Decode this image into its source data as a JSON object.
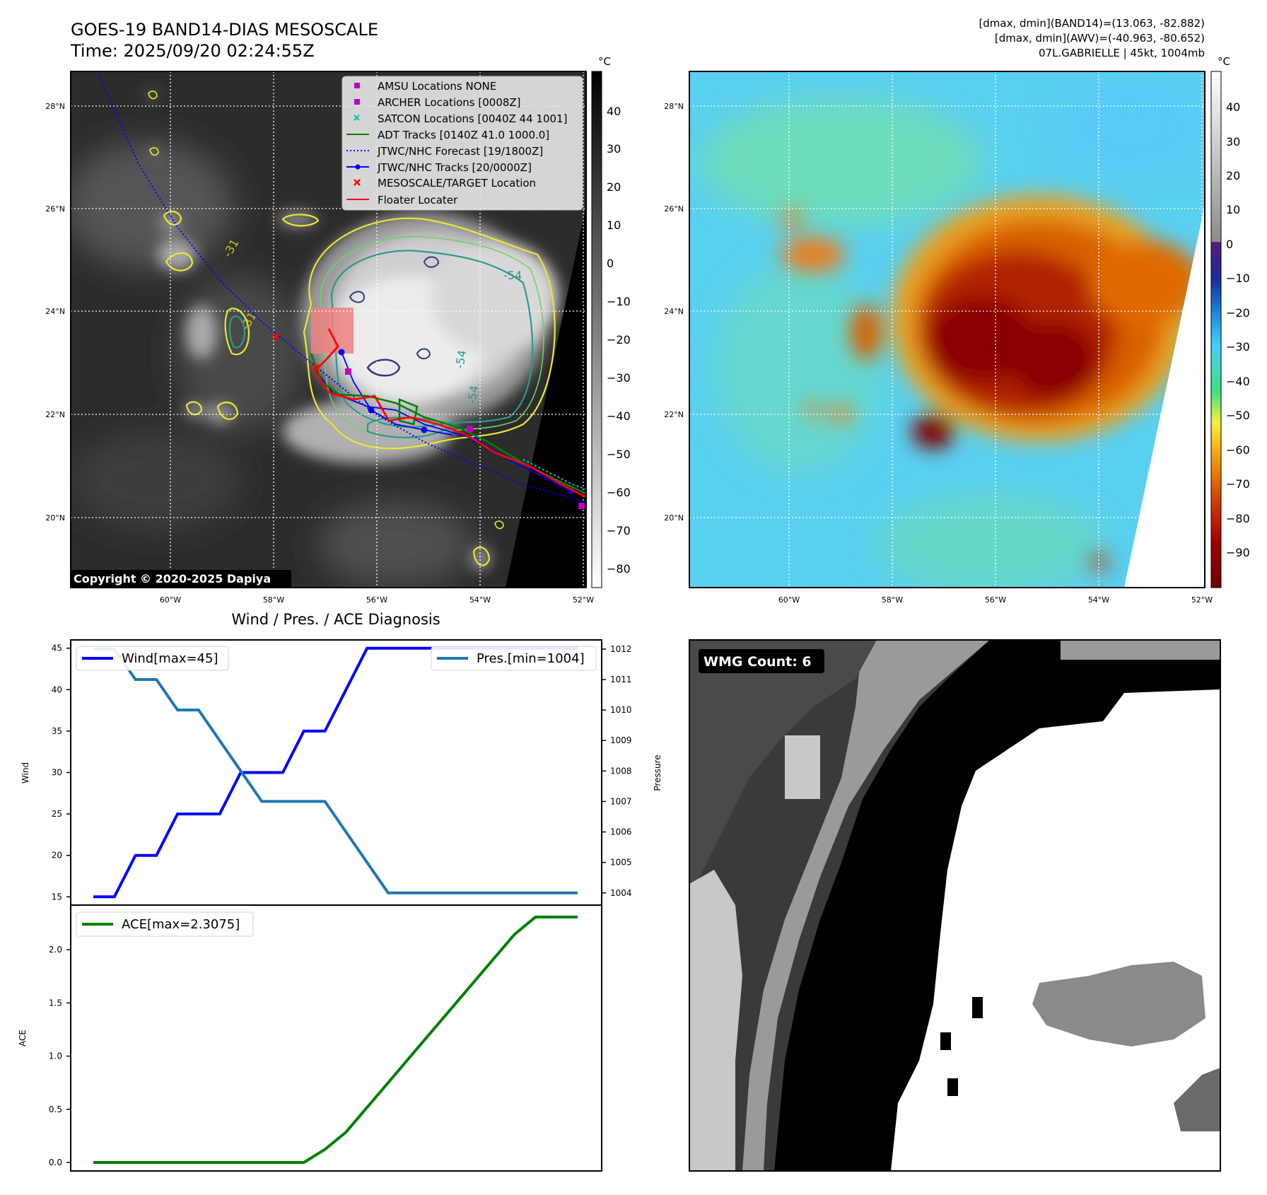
{
  "header": {
    "title_line1": "GOES-19 BAND14-DIAS MESOSCALE",
    "title_line2": "Time: 2025/09/20 02:24:55Z",
    "stats_line1": "[dmax, dmin](BAND14)=(13.063, -82.882)",
    "stats_line2": "[dmax, dmin](AWV)=(-40.963, -80.652)",
    "stats_line3": "07L.GABRIELLE | 45kt, 1004mb"
  },
  "map": {
    "lat_labels": [
      "20°N",
      "22°N",
      "24°N",
      "26°N",
      "28°N"
    ],
    "lon_labels": [
      "60°W",
      "58°W",
      "56°W",
      "54°W",
      "52°W"
    ],
    "copyright": "Copyright © 2020-2025 Dapiya",
    "contour_labels": [
      "-54",
      "-54",
      "-54",
      "-31",
      "-31"
    ],
    "colorbar_unit": "°C",
    "colorbar_gray_ticks": [
      "40",
      "30",
      "20",
      "10",
      "0",
      "−10",
      "−20",
      "−30",
      "−40",
      "−50",
      "−60",
      "−70",
      "−80"
    ],
    "colorbar_color_ticks": [
      "40",
      "30",
      "20",
      "10",
      "0",
      "−10",
      "−20",
      "−30",
      "−40",
      "−50",
      "−60",
      "−70",
      "−80",
      "−90"
    ],
    "legend": [
      {
        "label": "AMSU Locations NONE",
        "color": "#c000c0"
      },
      {
        "label": "ARCHER Locations [0008Z]",
        "color": "#c000c0"
      },
      {
        "label": "SATCON Locations [0040Z 44 1001]",
        "color": "#00c0c0"
      },
      {
        "label": "ADT Tracks [0140Z 41.0 1000.0]",
        "color": "#008000"
      },
      {
        "label": "JTWC/NHC Forecast [19/1800Z]",
        "color": "#0000ff"
      },
      {
        "label": "JTWC/NHC Tracks [20/0000Z]",
        "color": "#0000ff"
      },
      {
        "label": "MESOSCALE/TARGET Location",
        "color": "#ff0000"
      },
      {
        "label": "Floater Locater",
        "color": "#ff0000"
      }
    ]
  },
  "wmg": {
    "badge": "WMG Count: 6"
  },
  "chart_data": [
    {
      "type": "line",
      "title": "Wind / Pres. / ACE Diagnosis",
      "ylabel": "Wind",
      "y2label": "Pressure",
      "ylim": [
        14,
        46
      ],
      "y2lim": [
        1003.6,
        1012.3
      ],
      "yticks": [
        "15",
        "20",
        "25",
        "30",
        "35",
        "40",
        "45"
      ],
      "y2ticks": [
        "1004",
        "1005",
        "1006",
        "1007",
        "1008",
        "1009",
        "1010",
        "1011",
        "1012"
      ],
      "x": [
        0,
        1,
        2,
        3,
        4,
        5,
        6,
        7,
        8,
        9,
        10,
        11,
        12,
        13,
        14,
        15,
        16,
        17,
        18,
        19,
        20,
        21,
        22,
        23
      ],
      "series": [
        {
          "name": "Wind[max=45]",
          "color": "#0000ff",
          "values": [
            15,
            15,
            20,
            20,
            25,
            25,
            25,
            30,
            30,
            30,
            35,
            35,
            40,
            45,
            45,
            45,
            45,
            45,
            45,
            45,
            45,
            45,
            45,
            45
          ]
        },
        {
          "name": "Pres.[min=1004]",
          "color": "#1f77b4",
          "values": [
            1012,
            1012,
            1011,
            1011,
            1010,
            1010,
            1009,
            1008,
            1007,
            1007,
            1007,
            1007,
            1006,
            1005,
            1004,
            1004,
            1004,
            1004,
            1004,
            1004,
            1004,
            1004,
            1004,
            1004
          ]
        }
      ]
    },
    {
      "type": "line",
      "ylabel": "ACE",
      "ylim": [
        -0.08,
        2.42
      ],
      "yticks": [
        "0.0",
        "0.5",
        "1.0",
        "1.5",
        "2.0"
      ],
      "x": [
        0,
        1,
        2,
        3,
        4,
        5,
        6,
        7,
        8,
        9,
        10,
        11,
        12,
        13,
        14,
        15,
        16,
        17,
        18,
        19,
        20,
        21,
        22,
        23
      ],
      "series": [
        {
          "name": "ACE[max=2.3075]",
          "color": "#008000",
          "values": [
            0,
            0,
            0,
            0,
            0,
            0,
            0,
            0,
            0,
            0,
            0,
            0.1225,
            0.285,
            0.5175,
            0.75,
            0.9825,
            1.215,
            1.4475,
            1.68,
            1.9125,
            2.145,
            2.3075,
            2.3075,
            2.3075
          ]
        }
      ]
    }
  ]
}
